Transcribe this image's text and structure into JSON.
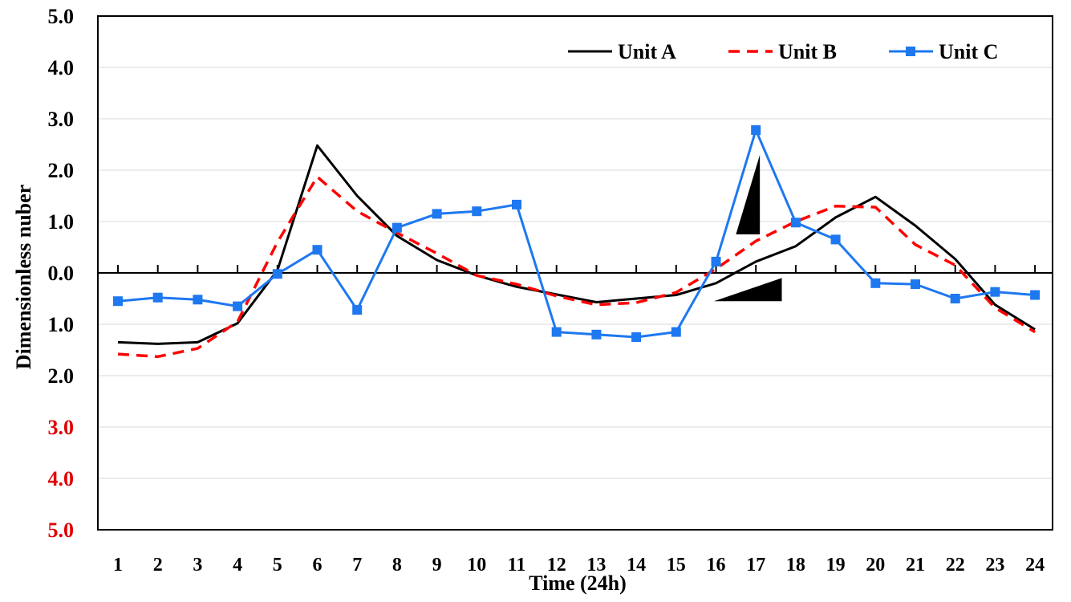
{
  "chart_data": {
    "type": "line",
    "title": "",
    "xlabel": "Time (24h)",
    "ylabel": "Dimensionless  nuber",
    "x": [
      1,
      2,
      3,
      4,
      5,
      6,
      7,
      8,
      9,
      10,
      11,
      12,
      13,
      14,
      15,
      16,
      17,
      18,
      19,
      20,
      21,
      22,
      23,
      24
    ],
    "x_tick_labels": [
      "1",
      "2",
      "3",
      "4",
      "5",
      "6",
      "7",
      "8",
      "9",
      "10",
      "11",
      "12",
      "13",
      "14",
      "15",
      "16",
      "17",
      "18",
      "19",
      "20",
      "21",
      "22",
      "23",
      "24"
    ],
    "ylim": [
      -5,
      5
    ],
    "y_tick_labels": [
      {
        "value": 5,
        "label": "5.0",
        "color": "#000000"
      },
      {
        "value": 4,
        "label": "4.0",
        "color": "#000000"
      },
      {
        "value": 3,
        "label": "3.0",
        "color": "#000000"
      },
      {
        "value": 2,
        "label": "2.0",
        "color": "#000000"
      },
      {
        "value": 1,
        "label": "1.0",
        "color": "#000000"
      },
      {
        "value": 0,
        "label": "0.0",
        "color": "#000000"
      },
      {
        "value": -1,
        "label": "1.0",
        "color": "#000000"
      },
      {
        "value": -2,
        "label": "2.0",
        "color": "#000000"
      },
      {
        "value": -3,
        "label": "3.0",
        "color": "#e00000"
      },
      {
        "value": -4,
        "label": "4.0",
        "color": "#e00000"
      },
      {
        "value": -5,
        "label": "5.0",
        "color": "#e00000"
      }
    ],
    "grid": true,
    "legend_position": "top-right",
    "series": [
      {
        "name": "Unit A",
        "color": "#000000",
        "style": "solid",
        "marker": "none",
        "values": [
          -1.35,
          -1.38,
          -1.35,
          -0.98,
          0.05,
          2.48,
          1.5,
          0.72,
          0.25,
          -0.05,
          -0.27,
          -0.42,
          -0.57,
          -0.5,
          -0.43,
          -0.2,
          0.22,
          0.52,
          1.08,
          1.48,
          0.92,
          0.27,
          -0.62,
          -1.1
        ]
      },
      {
        "name": "Unit B",
        "color": "#ff0000",
        "style": "dashed",
        "marker": "none",
        "values": [
          -1.58,
          -1.63,
          -1.47,
          -0.95,
          0.6,
          1.87,
          1.2,
          0.78,
          0.38,
          -0.05,
          -0.22,
          -0.45,
          -0.62,
          -0.58,
          -0.38,
          0.08,
          0.62,
          1.0,
          1.3,
          1.28,
          0.55,
          0.15,
          -0.68,
          -1.15
        ]
      },
      {
        "name": "Unit C",
        "color": "#1e78f0",
        "style": "solid",
        "marker": "square",
        "values": [
          -0.55,
          -0.48,
          -0.52,
          -0.65,
          -0.02,
          0.45,
          -0.72,
          0.88,
          1.15,
          1.2,
          1.33,
          -1.15,
          -1.2,
          -1.25,
          -1.15,
          0.22,
          2.78,
          0.98,
          0.65,
          -0.2,
          -0.22,
          -0.5,
          -0.37,
          -0.43
        ]
      }
    ],
    "annotations": [
      {
        "shape": "triangle",
        "points": [
          [
            16.5,
            0.75
          ],
          [
            17.1,
            2.3
          ],
          [
            17.1,
            0.75
          ]
        ]
      },
      {
        "shape": "triangle",
        "points": [
          [
            15.95,
            -0.55
          ],
          [
            17.65,
            -0.55
          ],
          [
            17.65,
            -0.1
          ]
        ]
      }
    ]
  }
}
